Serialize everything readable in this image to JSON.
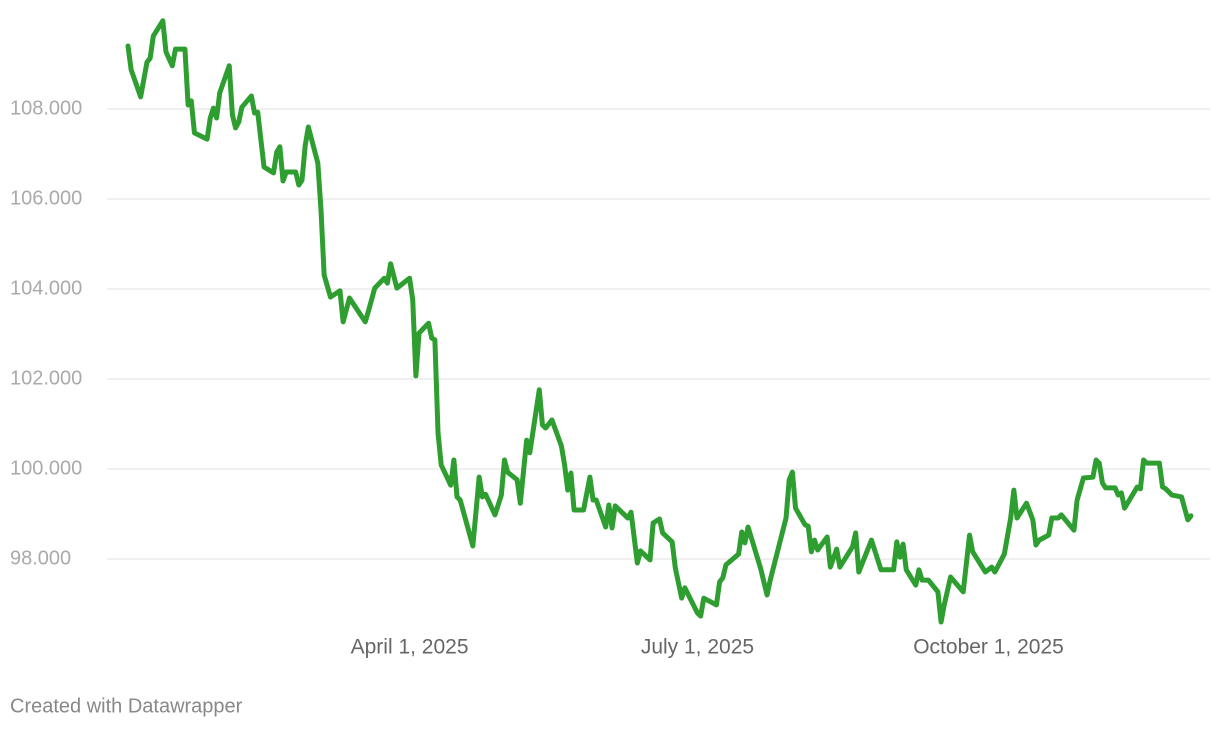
{
  "chart_data": {
    "type": "line",
    "x": [
      "2025-01-02",
      "2025-01-03",
      "2025-01-06",
      "2025-01-08",
      "2025-01-09",
      "2025-01-10",
      "2025-01-13",
      "2025-01-14",
      "2025-01-16",
      "2025-01-17",
      "2025-01-20",
      "2025-01-21",
      "2025-01-22",
      "2025-01-23",
      "2025-01-27",
      "2025-01-28",
      "2025-01-29",
      "2025-01-30",
      "2025-01-31",
      "2025-02-03",
      "2025-02-04",
      "2025-02-05",
      "2025-02-06",
      "2025-02-07",
      "2025-02-10",
      "2025-02-11",
      "2025-02-12",
      "2025-02-14",
      "2025-02-17",
      "2025-02-18",
      "2025-02-19",
      "2025-02-20",
      "2025-02-21",
      "2025-02-24",
      "2025-02-25",
      "2025-02-26",
      "2025-02-27",
      "2025-02-28",
      "2025-03-03",
      "2025-03-04",
      "2025-03-05",
      "2025-03-07",
      "2025-03-10",
      "2025-03-11",
      "2025-03-13",
      "2025-03-18",
      "2025-03-19",
      "2025-03-21",
      "2025-03-24",
      "2025-03-25",
      "2025-03-26",
      "2025-03-28",
      "2025-04-01",
      "2025-04-02",
      "2025-04-03",
      "2025-04-04",
      "2025-04-07",
      "2025-04-08",
      "2025-04-09",
      "2025-04-10",
      "2025-04-11",
      "2025-04-14",
      "2025-04-15",
      "2025-04-16",
      "2025-04-17",
      "2025-04-21",
      "2025-04-23",
      "2025-04-24",
      "2025-04-25",
      "2025-04-28",
      "2025-04-30",
      "2025-05-01",
      "2025-05-02",
      "2025-05-05",
      "2025-05-06",
      "2025-05-08",
      "2025-05-09",
      "2025-05-12",
      "2025-05-13",
      "2025-05-14",
      "2025-05-16",
      "2025-05-19",
      "2025-05-20",
      "2025-05-21",
      "2025-05-22",
      "2025-05-23",
      "2025-05-26",
      "2025-05-28",
      "2025-05-29",
      "2025-05-30",
      "2025-06-02",
      "2025-06-03",
      "2025-06-04",
      "2025-06-05",
      "2025-06-09",
      "2025-06-10",
      "2025-06-12",
      "2025-06-13",
      "2025-06-16",
      "2025-06-17",
      "2025-06-19",
      "2025-06-20",
      "2025-06-23",
      "2025-06-24",
      "2025-06-26",
      "2025-06-27",
      "2025-07-01",
      "2025-07-02",
      "2025-07-03",
      "2025-07-07",
      "2025-07-08",
      "2025-07-09",
      "2025-07-10",
      "2025-07-14",
      "2025-07-15",
      "2025-07-16",
      "2025-07-17",
      "2025-07-21",
      "2025-07-23",
      "2025-07-24",
      "2025-07-29",
      "2025-07-30",
      "2025-07-31",
      "2025-08-01",
      "2025-08-04",
      "2025-08-05",
      "2025-08-06",
      "2025-08-07",
      "2025-08-08",
      "2025-08-11",
      "2025-08-12",
      "2025-08-14",
      "2025-08-15",
      "2025-08-19",
      "2025-08-20",
      "2025-08-21",
      "2025-08-25",
      "2025-08-26",
      "2025-08-28",
      "2025-09-01",
      "2025-09-02",
      "2025-09-03",
      "2025-09-04",
      "2025-09-05",
      "2025-09-08",
      "2025-09-09",
      "2025-09-10",
      "2025-09-12",
      "2025-09-15",
      "2025-09-16",
      "2025-09-17",
      "2025-09-19",
      "2025-09-23",
      "2025-09-25",
      "2025-09-26",
      "2025-09-30",
      "2025-10-02",
      "2025-10-03",
      "2025-10-06",
      "2025-10-08",
      "2025-10-09",
      "2025-10-10",
      "2025-10-13",
      "2025-10-15",
      "2025-10-16",
      "2025-10-17",
      "2025-10-20",
      "2025-10-21",
      "2025-10-23",
      "2025-10-24",
      "2025-10-28",
      "2025-10-29",
      "2025-10-31",
      "2025-11-03",
      "2025-11-04",
      "2025-11-05",
      "2025-11-06",
      "2025-11-07",
      "2025-11-10",
      "2025-11-11",
      "2025-11-12",
      "2025-11-13",
      "2025-11-17",
      "2025-11-18",
      "2025-11-19",
      "2025-11-20",
      "2025-11-24",
      "2025-11-25",
      "2025-11-26",
      "2025-11-28",
      "2025-12-01",
      "2025-12-03",
      "2025-12-04"
    ],
    "values": [
      109.4,
      108.87,
      108.27,
      109.04,
      109.13,
      109.62,
      109.96,
      109.27,
      108.96,
      109.33,
      109.33,
      108.09,
      108.18,
      107.47,
      107.33,
      107.8,
      108.02,
      107.8,
      108.36,
      108.96,
      107.87,
      107.58,
      107.71,
      108.04,
      108.29,
      107.91,
      107.93,
      106.71,
      106.58,
      107.04,
      107.16,
      106.4,
      106.6,
      106.6,
      106.31,
      106.42,
      107.18,
      107.6,
      106.8,
      105.76,
      104.31,
      103.82,
      103.96,
      103.27,
      103.8,
      103.27,
      103.51,
      104.02,
      104.24,
      104.13,
      104.56,
      104.02,
      104.24,
      103.76,
      102.07,
      103.02,
      103.24,
      102.91,
      102.87,
      100.8,
      100.09,
      99.64,
      100.2,
      99.38,
      99.31,
      98.29,
      99.82,
      99.38,
      99.44,
      98.98,
      99.42,
      100.2,
      99.93,
      99.76,
      99.24,
      100.64,
      100.36,
      101.76,
      100.98,
      100.91,
      101.09,
      100.51,
      100.09,
      99.53,
      99.91,
      99.09,
      99.09,
      99.82,
      99.31,
      99.31,
      98.71,
      99.2,
      98.69,
      99.18,
      98.91,
      99.04,
      97.91,
      98.18,
      97.98,
      98.8,
      98.89,
      98.58,
      98.38,
      97.8,
      97.13,
      97.36,
      96.8,
      96.73,
      97.13,
      96.98,
      97.49,
      97.58,
      97.87,
      98.11,
      98.6,
      98.36,
      98.71,
      97.78,
      97.2,
      97.53,
      98.91,
      99.76,
      99.93,
      99.13,
      98.76,
      98.73,
      98.16,
      98.42,
      98.2,
      98.49,
      97.82,
      98.22,
      97.82,
      98.27,
      98.58,
      97.71,
      98.42,
      98.2,
      97.76,
      97.76,
      98.38,
      98.04,
      98.33,
      97.76,
      97.42,
      97.76,
      97.53,
      97.53,
      97.27,
      96.6,
      96.98,
      97.6,
      97.27,
      98.53,
      98.16,
      97.71,
      97.82,
      97.71,
      98.11,
      98.91,
      99.53,
      98.91,
      99.24,
      98.87,
      98.31,
      98.42,
      98.53,
      98.91,
      98.91,
      98.98,
      98.64,
      99.31,
      99.8,
      99.82,
      100.2,
      100.13,
      99.69,
      99.58,
      99.58,
      99.42,
      99.47,
      99.13,
      99.6,
      99.56,
      100.2,
      100.13,
      100.13,
      99.6,
      99.56,
      99.42,
      99.38,
      98.87,
      98.96
    ],
    "color": "#2e9e31",
    "xlim": [
      "2025-01-02",
      "2025-12-04"
    ],
    "xticks": [
      {
        "value": "2025-04-01",
        "label": "April 1, 2025"
      },
      {
        "value": "2025-07-01",
        "label": "July 1, 2025"
      },
      {
        "value": "2025-10-01",
        "label": "October 1, 2025"
      }
    ],
    "ylim": [
      96.5,
      110.2
    ],
    "yticks": [
      {
        "value": 98,
        "label": "98.000"
      },
      {
        "value": 100,
        "label": "100.000"
      },
      {
        "value": 102,
        "label": "102.000"
      },
      {
        "value": 104,
        "label": "104.000"
      },
      {
        "value": 106,
        "label": "106.000"
      },
      {
        "value": 108,
        "label": "108.000"
      }
    ],
    "grid": true,
    "credit": "Created with Datawrapper"
  }
}
